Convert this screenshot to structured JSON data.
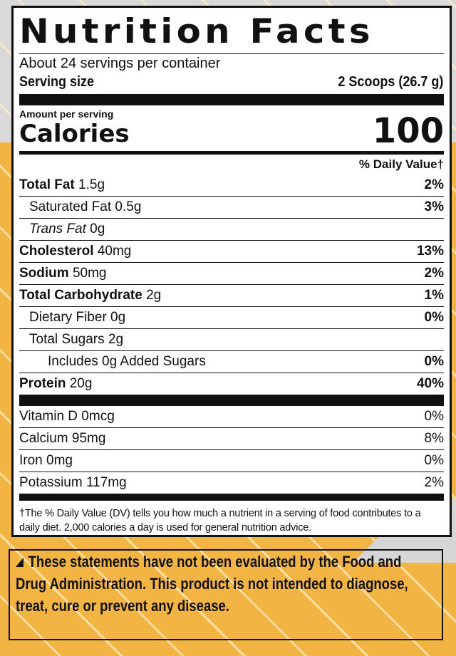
{
  "colors": {
    "background_gray": "#d9d9d9",
    "background_orange": "#f2b543",
    "text": "#111111"
  },
  "label": {
    "title": "Nutrition Facts",
    "servings_per_container": "About 24 servings per container",
    "serving_size_label": "Serving size",
    "serving_size_value": "2 Scoops (26.7 g)",
    "amount_per_serving": "Amount per serving",
    "calories_label": "Calories",
    "calories_value": "100",
    "daily_value_header": "% Daily Value†",
    "nutrients": [
      {
        "name": "Total Fat",
        "amount": "1.5g",
        "dv": "2%"
      },
      {
        "name": "Saturated Fat",
        "amount": "0.5g",
        "dv": "3%"
      },
      {
        "name": "Trans Fat",
        "amount": "0g",
        "dv": ""
      },
      {
        "name": "Cholesterol",
        "amount": "40mg",
        "dv": "13%"
      },
      {
        "name": "Sodium",
        "amount": "50mg",
        "dv": "2%"
      },
      {
        "name": "Total Carbohydrate",
        "amount": "2g",
        "dv": "1%"
      },
      {
        "name": "Dietary Fiber",
        "amount": "0g",
        "dv": "0%"
      },
      {
        "name": "Total Sugars",
        "amount": "2g",
        "dv": ""
      },
      {
        "name": "Includes 0g Added Sugars",
        "amount": "",
        "dv": "0%"
      },
      {
        "name": "Protein",
        "amount": "20g",
        "dv": "40%"
      }
    ],
    "vitamins": [
      {
        "name": "Vitamin D",
        "amount": "0mcg",
        "dv": "0%"
      },
      {
        "name": "Calcium",
        "amount": "95mg",
        "dv": "8%"
      },
      {
        "name": "Iron",
        "amount": "0mg",
        "dv": "0%"
      },
      {
        "name": "Potassium",
        "amount": "117mg",
        "dv": "2%"
      }
    ],
    "footnote": "†The % Daily Value (DV) tells you how much a nutrient in a serving of food contributes to a daily diet. 2,000 calories a day is used for general nutrition advice."
  },
  "disclaimer": {
    "icon": "triangle-icon",
    "text": "These statements have not been evaluated by the Food and Drug Administration. This product is not intended to diagnose, treat, cure or prevent any disease."
  }
}
